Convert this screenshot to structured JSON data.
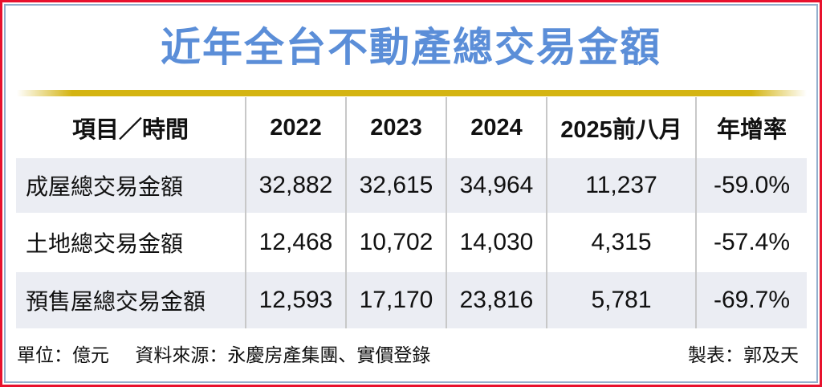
{
  "chart_data": {
    "type": "table",
    "title": "近年全台不動產總交易金額",
    "columns": [
      "項目／時間",
      "2022",
      "2023",
      "2024",
      "2025前八月",
      "年增率"
    ],
    "rows": [
      [
        "成屋總交易金額",
        "32,882",
        "32,615",
        "34,964",
        "11,237",
        "-59.0%"
      ],
      [
        "土地總交易金額",
        "12,468",
        "10,702",
        "14,030",
        "4,315",
        "-57.4%"
      ],
      [
        "預售屋總交易金額",
        "12,593",
        "17,170",
        "23,816",
        "5,781",
        "-69.7%"
      ]
    ]
  },
  "footer": {
    "unit": "單位：億元",
    "source": "資料來源：永慶房產集團、實價登錄",
    "credit": "製表：郭及天"
  },
  "colors": {
    "frame_red": "#e8112d",
    "inner_border_blue": "#93afcd",
    "title_blue": "#5b8ed8",
    "gold_bar": "#d4b412",
    "row_shade": "#ebedf3",
    "separator_gray": "#c8c8c8",
    "text": "#111111"
  }
}
